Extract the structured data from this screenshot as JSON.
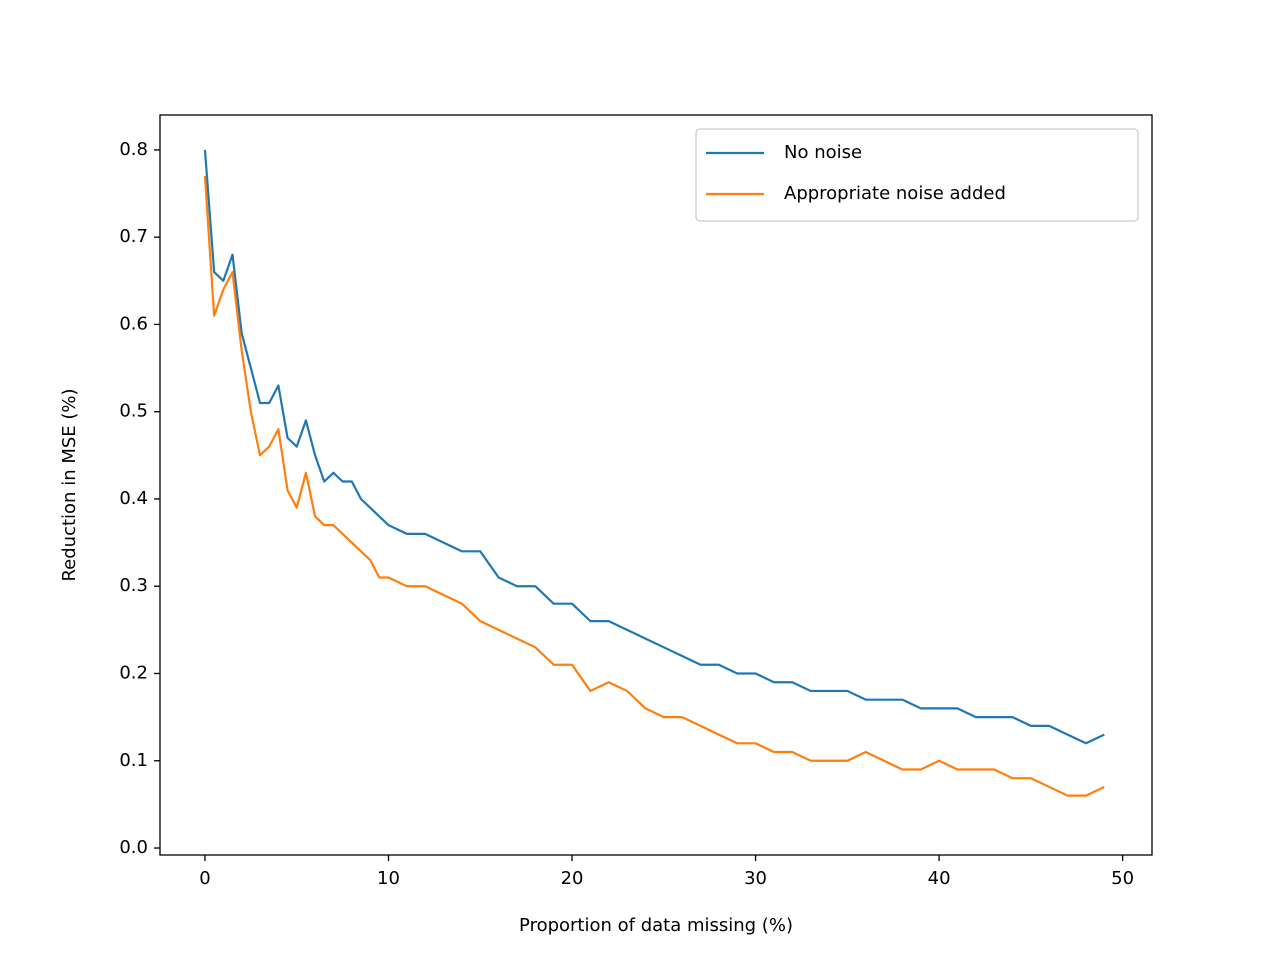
{
  "chart_data": {
    "type": "line",
    "xlabel": "Proportion of data missing (%)",
    "ylabel": "Reduction in MSE (%)",
    "x": [
      0,
      0.5,
      1,
      1.5,
      2,
      2.5,
      3,
      3.5,
      4,
      4.5,
      5,
      5.5,
      6,
      6.5,
      7,
      7.5,
      8,
      8.5,
      9,
      9.5,
      10,
      11,
      12,
      13,
      14,
      15,
      16,
      17,
      18,
      19,
      20,
      21,
      22,
      23,
      24,
      25,
      26,
      27,
      28,
      29,
      30,
      31,
      32,
      33,
      34,
      35,
      36,
      37,
      38,
      39,
      40,
      41,
      42,
      43,
      44,
      45,
      46,
      47,
      48,
      49
    ],
    "series": [
      {
        "name": "No noise",
        "color": "#1f77b4",
        "values": [
          0.8,
          0.66,
          0.65,
          0.68,
          0.59,
          0.55,
          0.51,
          0.51,
          0.53,
          0.47,
          0.46,
          0.49,
          0.45,
          0.42,
          0.43,
          0.42,
          0.42,
          0.4,
          0.39,
          0.38,
          0.37,
          0.36,
          0.36,
          0.35,
          0.34,
          0.34,
          0.31,
          0.3,
          0.3,
          0.28,
          0.28,
          0.26,
          0.26,
          0.25,
          0.24,
          0.23,
          0.22,
          0.21,
          0.21,
          0.2,
          0.2,
          0.19,
          0.19,
          0.18,
          0.18,
          0.18,
          0.17,
          0.17,
          0.17,
          0.16,
          0.16,
          0.16,
          0.15,
          0.15,
          0.15,
          0.14,
          0.14,
          0.13,
          0.12,
          0.13
        ]
      },
      {
        "name": "Appropriate noise added",
        "color": "#ff7f0e",
        "values": [
          0.77,
          0.61,
          0.64,
          0.66,
          0.57,
          0.5,
          0.45,
          0.46,
          0.48,
          0.41,
          0.39,
          0.43,
          0.38,
          0.37,
          0.37,
          0.36,
          0.35,
          0.34,
          0.33,
          0.31,
          0.31,
          0.3,
          0.3,
          0.29,
          0.28,
          0.26,
          0.25,
          0.24,
          0.23,
          0.21,
          0.21,
          0.18,
          0.19,
          0.18,
          0.16,
          0.15,
          0.15,
          0.14,
          0.13,
          0.12,
          0.12,
          0.11,
          0.11,
          0.1,
          0.1,
          0.1,
          0.11,
          0.1,
          0.09,
          0.09,
          0.1,
          0.09,
          0.09,
          0.09,
          0.08,
          0.08,
          0.07,
          0.06,
          0.06,
          0.07
        ]
      }
    ],
    "xlim": [
      -2.45,
      51.6
    ],
    "ylim": [
      -0.008,
      0.84
    ],
    "xticks": [
      0,
      10,
      20,
      30,
      40,
      50
    ],
    "yticks": [
      {
        "value": 0,
        "label": "0.0"
      },
      0.1,
      0.2,
      0.3,
      0.4,
      0.5,
      0.6,
      0.7,
      0.8
    ],
    "legend": "upper right",
    "grid": false
  }
}
